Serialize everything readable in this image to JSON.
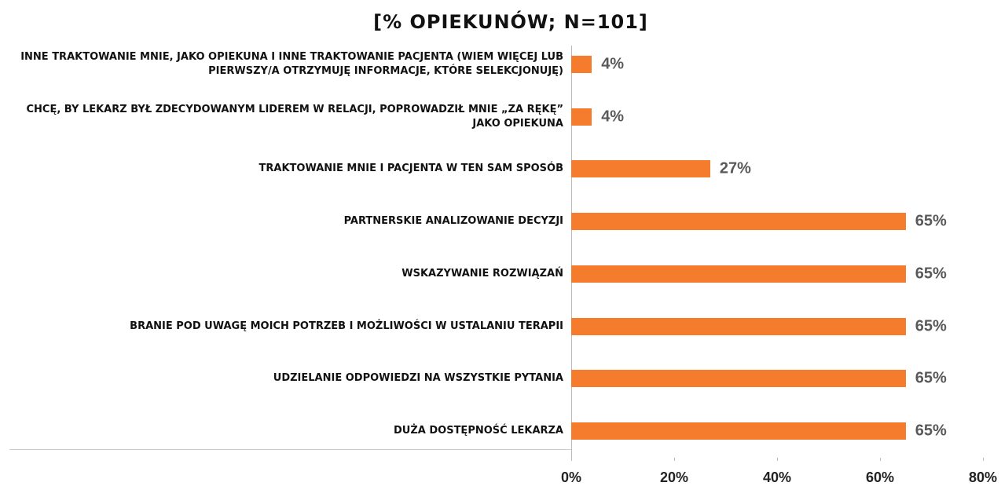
{
  "chart_data": {
    "type": "bar",
    "orientation": "horizontal",
    "title": "[% OPIEKUNÓW; N=101]",
    "categories": [
      "INNE TRAKTOWANIE MNIE, JAKO OPIEKUNA I INNE TRAKTOWANIE PACJENTA (WIEM WIĘCEJ LUB PIERWSZY/A OTRZYMUJĘ INFORMACJE, KTÓRE SELEKCJONUJĘ)",
      "CHCĘ, BY LEKARZ BYŁ ZDECYDOWANYM LIDEREM W RELACJI, POPROWADZIŁ MNIE „ZA RĘKĘ” JAKO OPIEKUNA",
      "TRAKTOWANIE MNIE I PACJENTA W TEN SAM SPOSÓB",
      "PARTNERSKIE ANALIZOWANIE DECYZJI",
      "WSKAZYWANIE ROZWIĄZAŃ",
      "BRANIE POD UWAGĘ MOICH POTRZEB I MOŻLIWOŚCI W USTALANIU TERAPII",
      "UDZIELANIE ODPOWIEDZI NA WSZYSTKIE PYTANIA",
      "DUŻA DOSTĘPNOŚĆ LEKARZA"
    ],
    "values": [
      4,
      4,
      27,
      65,
      65,
      65,
      65,
      65
    ],
    "value_labels": [
      "4%",
      "4%",
      "27%",
      "65%",
      "65%",
      "65%",
      "65%",
      "65%"
    ],
    "color": "#f47c2c",
    "xlim": [
      0,
      80
    ],
    "xticks": [
      {
        "value": 0,
        "label": "0%"
      },
      {
        "value": 20,
        "label": "20%"
      },
      {
        "value": 40,
        "label": "40%"
      },
      {
        "value": 60,
        "label": "60%"
      },
      {
        "value": 80,
        "label": "80%"
      }
    ]
  }
}
